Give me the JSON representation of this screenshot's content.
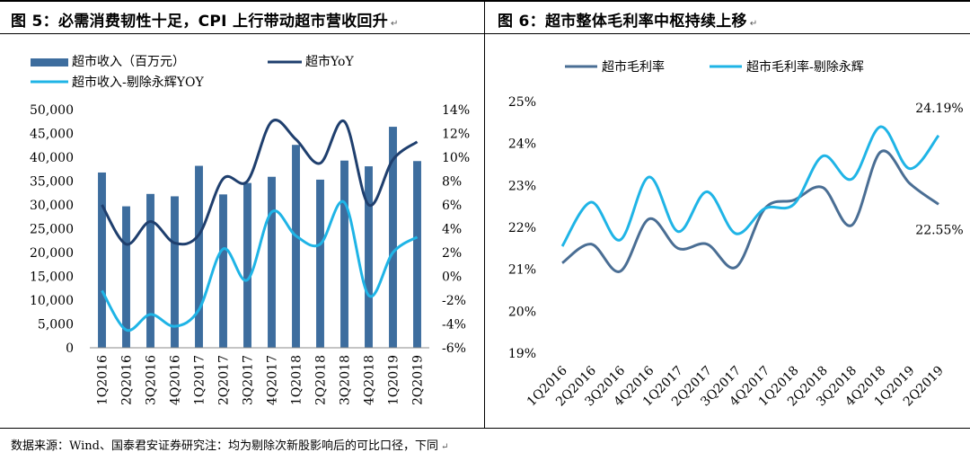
{
  "figure_left": {
    "title": "图 5：必需消费韧性十足，CPI 上行带动超市营收回升",
    "title_mark": "↵"
  },
  "figure_right": {
    "title": "图 6：超市整体毛利率中枢持续上移",
    "title_mark": "↵"
  },
  "footnote": {
    "text": "数据来源：Wind、国泰君安证券研究注：均为剔除次新股影响后的可比口径，下同",
    "mark": "↵"
  },
  "chart_data": [
    {
      "type": "bar",
      "categories": [
        "1Q2016",
        "2Q2016",
        "3Q2016",
        "4Q2016",
        "1Q2017",
        "2Q2017",
        "3Q2017",
        "4Q2017",
        "1Q2018",
        "2Q2018",
        "3Q2018",
        "4Q2018",
        "1Q2019",
        "2Q2019"
      ],
      "series": [
        {
          "name": "超市收入（百万元）",
          "kind": "bar",
          "axis": "left",
          "color": "#3d6d9e",
          "values": [
            36800,
            29700,
            32300,
            31800,
            38200,
            32200,
            34600,
            35900,
            42600,
            35300,
            39300,
            38100,
            46400,
            39200
          ]
        },
        {
          "name": "超市YoY",
          "kind": "line",
          "axis": "right",
          "color": "#1f3f6e",
          "values": [
            6.0,
            2.7,
            4.6,
            2.8,
            3.5,
            8.2,
            8.0,
            13.0,
            11.5,
            9.5,
            13.0,
            6.0,
            9.8,
            11.3
          ]
        },
        {
          "name": "超市收入-剔除永辉YOY",
          "kind": "line",
          "axis": "right",
          "color": "#1fb4e6",
          "values": [
            -1.2,
            -4.5,
            -3.2,
            -4.2,
            -2.8,
            2.3,
            -0.3,
            5.4,
            3.4,
            2.7,
            6.2,
            -1.6,
            2.0,
            3.3
          ]
        }
      ],
      "yticks_left": [
        "50,000",
        "45,000",
        "40,000",
        "35,000",
        "30,000",
        "25,000",
        "20,000",
        "15,000",
        "10,000",
        "5,000",
        "0"
      ],
      "yticks_right": [
        "14%",
        "12%",
        "10%",
        "8%",
        "6%",
        "4%",
        "2%",
        "0%",
        "-2%",
        "-4%",
        "-6%"
      ],
      "ylim_left": [
        0,
        50000
      ],
      "ylim_right": [
        -6,
        14
      ],
      "legend_position": "top-left"
    },
    {
      "type": "line",
      "categories": [
        "1Q2016",
        "2Q2016",
        "3Q2016",
        "4Q2016",
        "1Q2017",
        "2Q2017",
        "3Q2017",
        "4Q2017",
        "1Q2018",
        "2Q2018",
        "3Q2018",
        "4Q2018",
        "1Q2019",
        "2Q2019"
      ],
      "series": [
        {
          "name": "超市毛利率",
          "color": "#4a6e94",
          "values": [
            21.15,
            21.6,
            20.95,
            22.2,
            21.5,
            21.6,
            21.05,
            22.45,
            22.65,
            22.95,
            22.05,
            23.8,
            23.05,
            22.55
          ]
        },
        {
          "name": "超市毛利率-剔除永辉",
          "color": "#1fb4e6",
          "values": [
            21.55,
            22.6,
            21.7,
            23.2,
            21.9,
            22.85,
            21.85,
            22.45,
            22.55,
            23.7,
            23.15,
            24.4,
            23.4,
            24.19
          ]
        }
      ],
      "yticks": [
        "25%",
        "24%",
        "23%",
        "22%",
        "21%",
        "20%",
        "19%"
      ],
      "ylim": [
        19,
        25
      ],
      "annotations": [
        "24.19%",
        "22.55%"
      ],
      "legend_position": "top"
    }
  ]
}
